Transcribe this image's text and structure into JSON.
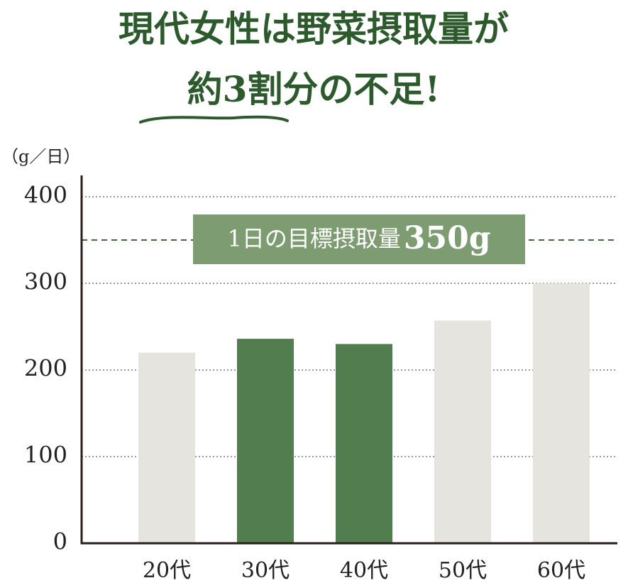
{
  "chart_data": {
    "type": "bar",
    "title": [
      "現代女性は野菜摂取量が",
      "約3割分の不足!"
    ],
    "y_label": "（g／日）",
    "categories": [
      "20代",
      "30代",
      "40代",
      "50代",
      "60代"
    ],
    "values": [
      220,
      236,
      230,
      257,
      300
    ],
    "colors": [
      "#e6e4df",
      "#527d4f",
      "#527d4f",
      "#e6e4df",
      "#e6e4df"
    ],
    "ylim": [
      0,
      400
    ],
    "yticks": [
      0,
      100,
      200,
      300,
      400
    ],
    "grid": true,
    "target": {
      "value": 350,
      "label": "1日の目標摂取量",
      "value_label": "350g",
      "color": "#7d9c72"
    }
  }
}
